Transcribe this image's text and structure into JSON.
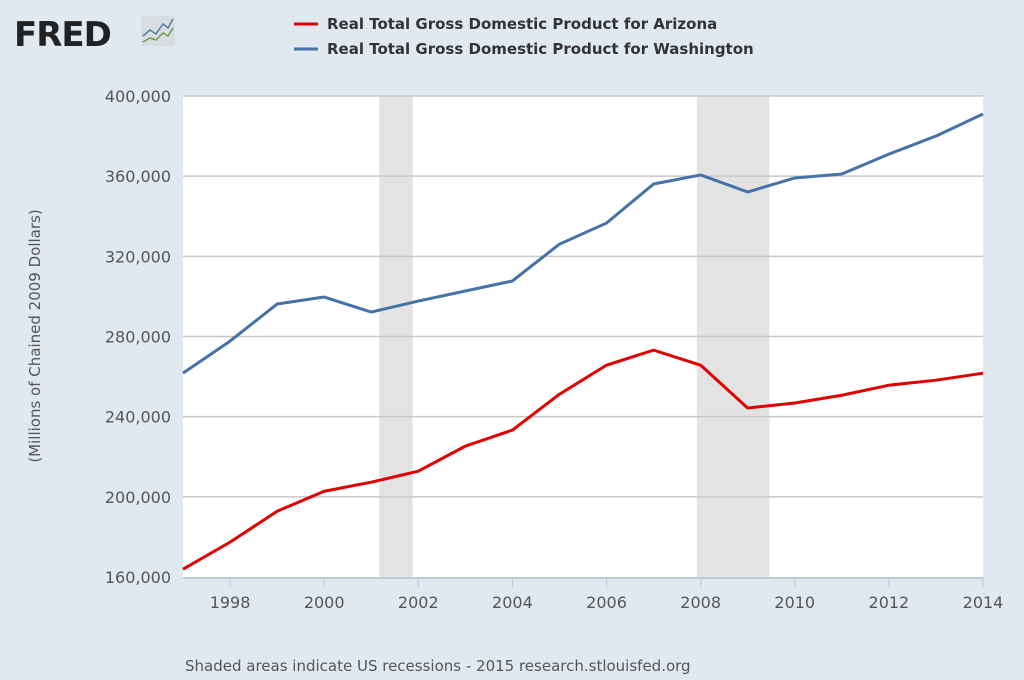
{
  "logo": {
    "text": "FRED",
    "icon": "chart-line-icon"
  },
  "footer": "Shaded areas indicate US recessions - 2015 research.stlouisfed.org",
  "chart_data": {
    "type": "line",
    "title": "",
    "xlabel": "",
    "ylabel": "(Millions of Chained 2009 Dollars)",
    "xlim": [
      1997,
      2014
    ],
    "ylim": [
      160000,
      400000
    ],
    "yticks": [
      160000,
      200000,
      240000,
      280000,
      320000,
      360000,
      400000
    ],
    "ytick_labels": [
      "160,000",
      "200,000",
      "240,000",
      "280,000",
      "320,000",
      "360,000",
      "400,000"
    ],
    "xticks": [
      1998,
      2000,
      2002,
      2004,
      2006,
      2008,
      2010,
      2012,
      2014
    ],
    "xtick_labels": [
      "1998",
      "2000",
      "2002",
      "2004",
      "2006",
      "2008",
      "2010",
      "2012",
      "2014"
    ],
    "grid": true,
    "legend_position": "top",
    "x": [
      1997,
      1998,
      1999,
      2000,
      2001,
      2002,
      2003,
      2004,
      2005,
      2006,
      2007,
      2008,
      2009,
      2010,
      2011,
      2012,
      2013,
      2014
    ],
    "series": [
      {
        "name": "Real Total Gross Domestic Product for Arizona",
        "color": "#e00000",
        "values": [
          163900,
          177400,
          192800,
          202800,
          207300,
          212800,
          225300,
          233300,
          251200,
          265700,
          273200,
          265700,
          244300,
          246800,
          250700,
          255700,
          258200,
          261700
        ]
      },
      {
        "name": "Real Total Gross Domestic Product for Washington",
        "color": "#4572a7",
        "values": [
          261700,
          277700,
          296200,
          299700,
          292200,
          297700,
          302700,
          307700,
          326100,
          336600,
          356100,
          360600,
          352100,
          359100,
          361100,
          371000,
          380000,
          391000
        ]
      }
    ],
    "recessions": [
      [
        2001.17,
        2001.88
      ],
      [
        2007.92,
        2009.46
      ]
    ],
    "recession_color": "#e3e3e3"
  }
}
